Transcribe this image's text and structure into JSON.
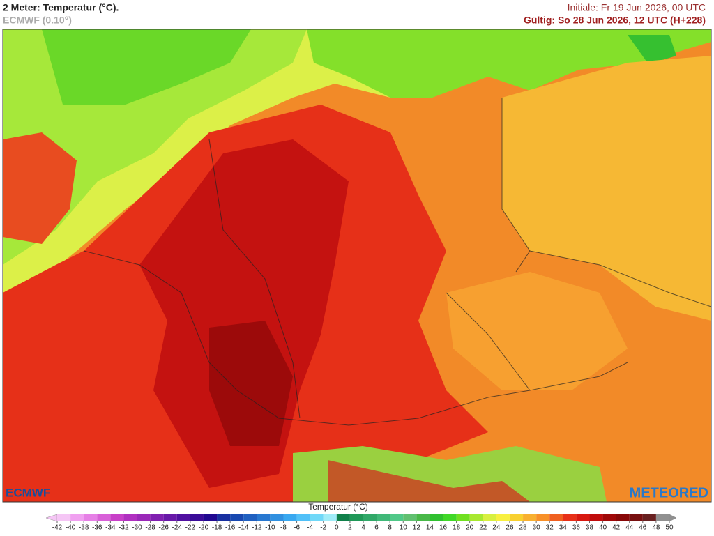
{
  "header": {
    "title": "2 Meter: Temperatur (°C).",
    "subtitle": "ECMWF (0.10°)",
    "init": "Initiale: Fr 19 Jun 2026, 00 UTC",
    "valid": "Gültig: So 28 Jun 2026, 12 UTC (H+228)"
  },
  "logos": {
    "left": "ECMWF",
    "right": "METEORED"
  },
  "legend": {
    "title": "Temperatur (°C)",
    "ticks": [
      -42,
      -40,
      -38,
      -36,
      -34,
      -32,
      -30,
      -28,
      -26,
      -24,
      -22,
      -20,
      -18,
      -16,
      -14,
      -12,
      -10,
      -8,
      -6,
      -4,
      -2,
      0,
      2,
      4,
      6,
      8,
      10,
      12,
      14,
      16,
      18,
      20,
      22,
      24,
      26,
      28,
      30,
      32,
      34,
      36,
      38,
      40,
      42,
      44,
      46,
      48,
      50
    ],
    "colors": [
      "#f5c6f5",
      "#f0a0f0",
      "#e680e6",
      "#d860d8",
      "#c840c8",
      "#b030c0",
      "#9a28b8",
      "#8020b0",
      "#6818a8",
      "#5010a0",
      "#3a0c98",
      "#200890",
      "#1830a0",
      "#1848b0",
      "#2060c0",
      "#2878d0",
      "#3090e0",
      "#38a8f0",
      "#50c0f8",
      "#70d8f8",
      "#a0ecf8",
      "#10804a",
      "#209858",
      "#30a868",
      "#40b878",
      "#50c888",
      "#60c070",
      "#48b848",
      "#30c030",
      "#40d828",
      "#70e020",
      "#a8e830",
      "#d8f040",
      "#f8f040",
      "#f8d030",
      "#f8b030",
      "#f89028",
      "#f06020",
      "#e83018",
      "#d81810",
      "#c00c0c",
      "#a00808",
      "#880808",
      "#781010",
      "#682020",
      "#909090"
    ]
  }
}
